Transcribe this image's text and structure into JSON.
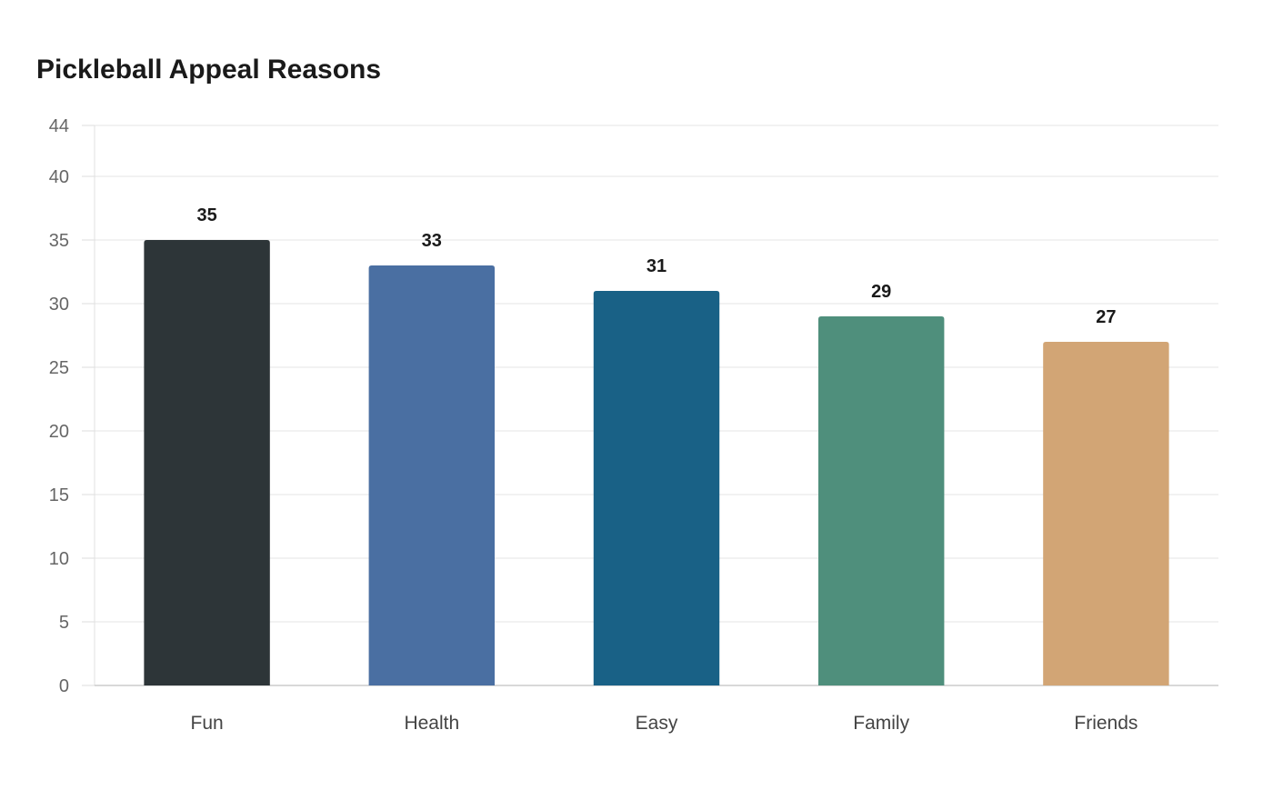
{
  "chart_data": {
    "type": "bar",
    "title": "Pickleball Appeal Reasons",
    "xlabel": "",
    "ylabel": "",
    "categories": [
      "Fun",
      "Health",
      "Easy",
      "Family",
      "Friends"
    ],
    "values": [
      35,
      33,
      31,
      29,
      27
    ],
    "colors": [
      "#2d3538",
      "#4a6fa2",
      "#196186",
      "#4f8f7c",
      "#d2a575"
    ],
    "ylim": [
      0,
      44
    ],
    "yticks": [
      0,
      5,
      10,
      15,
      20,
      25,
      30,
      35,
      40,
      44
    ],
    "grid": true,
    "legend": "none",
    "data_labels": true
  }
}
